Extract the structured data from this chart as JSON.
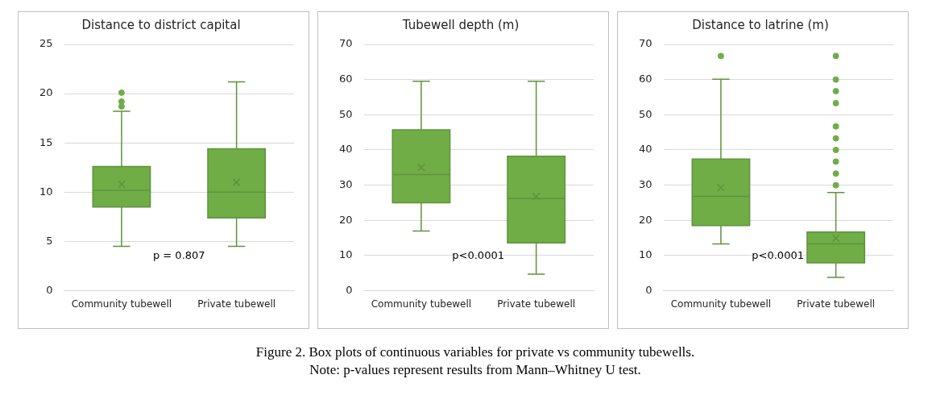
{
  "chart_data": [
    {
      "type": "box",
      "title": "Distance to district capital",
      "categories": [
        "Community tubewell",
        "Private tubewell"
      ],
      "color": "#70ad47",
      "ylim": [
        0,
        25
      ],
      "yticks": [
        0,
        5,
        10,
        15,
        20,
        25
      ],
      "grid": "y",
      "annotations": [
        "p = 0.807"
      ],
      "boxes": [
        {
          "low": 4.5,
          "q1": 8.5,
          "median": 10.2,
          "q3": 12.6,
          "high": 18.2,
          "mean": 10.8,
          "outliers": [
            18.7,
            19.2,
            20.1
          ]
        },
        {
          "low": 4.5,
          "q1": 7.4,
          "median": 10,
          "q3": 14.4,
          "high": 21.2,
          "mean": 11
        }
      ]
    },
    {
      "type": "box",
      "title": "Tubewell depth (m)",
      "categories": [
        "Community tubewell",
        "Private tubewell"
      ],
      "color": "#70ad47",
      "ylim": [
        0,
        70
      ],
      "yticks": [
        0,
        10,
        20,
        30,
        40,
        50,
        60,
        70
      ],
      "grid": "y",
      "annotations": [
        "p<0.0001"
      ],
      "boxes": [
        {
          "low": 17,
          "q1": 25,
          "median": 33,
          "q3": 45.7,
          "high": 59.5,
          "mean": 35
        },
        {
          "low": 4.7,
          "q1": 13.6,
          "median": 26.2,
          "q3": 38.2,
          "high": 59.5,
          "mean": 26.8
        }
      ]
    },
    {
      "type": "box",
      "title": "Distance to latrine (m)",
      "categories": [
        "Community tubewell",
        "Private tubewell"
      ],
      "color": "#70ad47",
      "ylim": [
        0,
        70
      ],
      "yticks": [
        0,
        10,
        20,
        30,
        40,
        50,
        60,
        70
      ],
      "grid": "y",
      "annotations": [
        "p<0.0001"
      ],
      "boxes": [
        {
          "low": 13.3,
          "q1": 18.5,
          "median": 26.8,
          "q3": 37.4,
          "high": 60.1,
          "mean": 29.3,
          "outliers": [
            66.7
          ]
        },
        {
          "low": 3.8,
          "q1": 7.9,
          "median": 13.3,
          "q3": 16.7,
          "high": 27.9,
          "mean": 14.9,
          "outliers": [
            30,
            33.3,
            36.7,
            40,
            43.3,
            46.7,
            53.3,
            56.7,
            60,
            66.7
          ]
        }
      ]
    },
    {
      "type": "other",
      "annotations": [
        "Figure 2. Box plots of continuous variables for private vs community tubewells.",
        "Note: p-values represent results from Mann–Whitney U test."
      ]
    }
  ]
}
